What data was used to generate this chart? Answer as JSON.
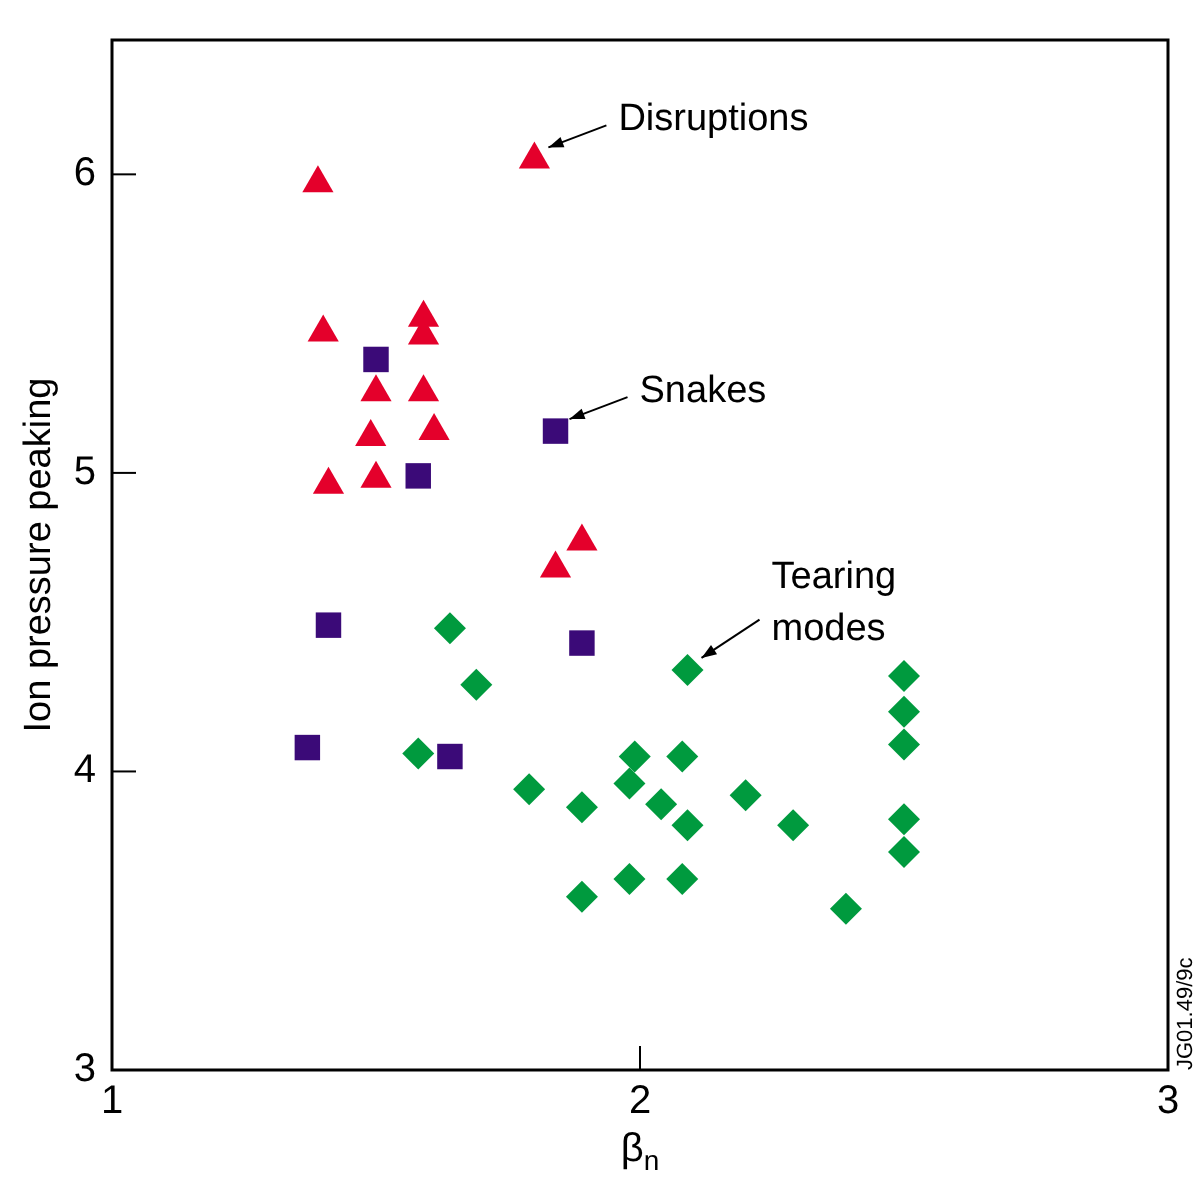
{
  "chart_data": {
    "type": "scatter",
    "xlabel": "β$_{n}$",
    "ylabel": "Ion pressure peaking",
    "xlim": [
      1,
      3
    ],
    "xticks": [
      1,
      2,
      3
    ],
    "ylim": [
      3,
      6.45
    ],
    "yticks": [
      3,
      4,
      5,
      6
    ],
    "grid": false,
    "legend": false,
    "series": [
      {
        "color": "#e4002b",
        "marker": "triangle",
        "x": [
          1.39,
          1.8,
          1.4,
          1.59,
          1.59,
          1.5,
          1.59,
          1.61,
          1.49,
          1.5,
          1.41,
          1.89,
          1.84
        ],
        "values": [
          5.97,
          6.05,
          5.47,
          5.52,
          5.46,
          5.27,
          5.27,
          5.14,
          5.12,
          4.98,
          4.96,
          4.77,
          4.68
        ]
      },
      {
        "color": "#3b0a78",
        "marker": "square",
        "x": [
          1.5,
          1.58,
          1.84,
          1.41,
          1.89,
          1.37,
          1.64
        ],
        "values": [
          5.38,
          4.99,
          5.14,
          4.49,
          4.43,
          4.08,
          4.05
        ]
      },
      {
        "color": "#009a3e",
        "marker": "diamond",
        "x": [
          1.64,
          1.69,
          1.58,
          1.79,
          1.89,
          1.89,
          2.09,
          1.99,
          2.08,
          1.98,
          2.04,
          2.09,
          2.2,
          2.29,
          1.98,
          2.08,
          2.39,
          2.5,
          2.5,
          2.5,
          2.5,
          2.5
        ],
        "values": [
          4.48,
          4.29,
          4.06,
          3.94,
          3.88,
          3.58,
          4.34,
          4.05,
          4.05,
          3.96,
          3.89,
          3.82,
          3.92,
          3.82,
          3.64,
          3.64,
          3.54,
          4.32,
          4.2,
          4.09,
          3.84,
          3.73
        ]
      }
    ],
    "annotations": [
      {
        "text": "Disruptions",
        "x": 1.8,
        "y": 6.05
      },
      {
        "text": "Snakes",
        "x": 1.84,
        "y": 5.14
      },
      {
        "text": "Tearing modes",
        "x": 2.09,
        "y": 4.34
      },
      "JG01.49/9c"
    ]
  }
}
